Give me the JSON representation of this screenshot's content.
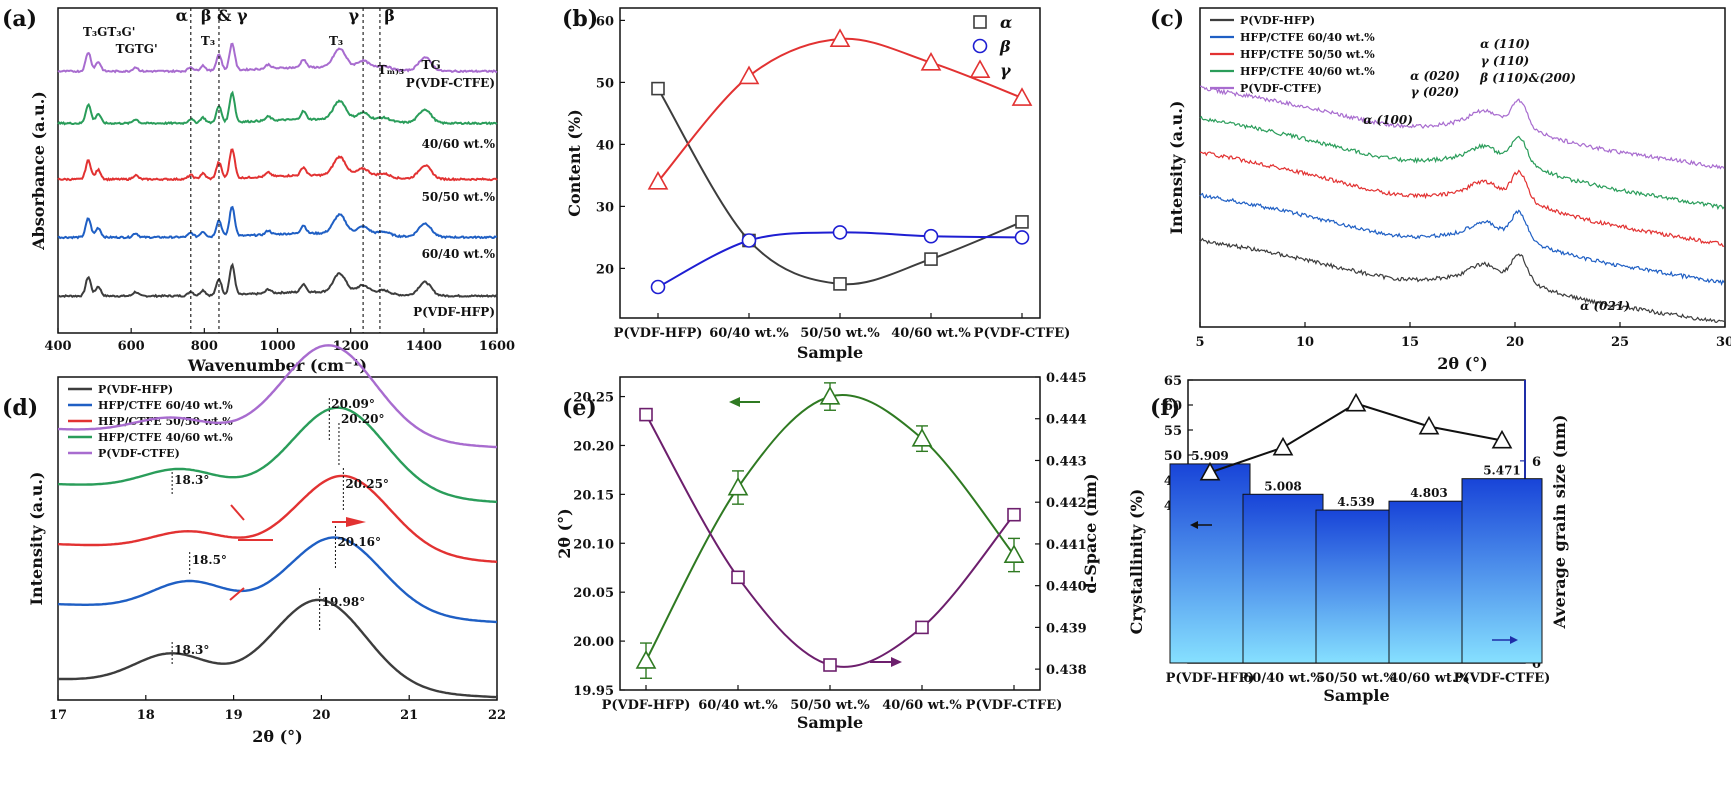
{
  "colors": {
    "black": "#3d3d3d",
    "blue": "#1f5fc4",
    "red": "#e23232",
    "green": "#2a9d5a",
    "purple": "#a86ccf",
    "dkgreen": "#2f7a22",
    "dkpurple": "#6d1f6d",
    "navy": "#1f2ea8"
  },
  "chart_data": [
    {
      "panel": "(a)",
      "type": "line",
      "xlabel": "Wavenumber (cm⁻¹)",
      "ylabel": "Absorbance (a.u.)",
      "xlim": [
        400,
        1600
      ],
      "xticks": [
        "400",
        "600",
        "800",
        "1000",
        "1200",
        "1400",
        "1600"
      ],
      "series": [
        {
          "name": "P(VDF-HFP)",
          "offset": 0
        },
        {
          "name": "60/40 wt.%",
          "offset": 1
        },
        {
          "name": "50/50 wt.%",
          "offset": 2
        },
        {
          "name": "40/60 wt.%",
          "offset": 3
        },
        {
          "name": "P(VDF-CTFE)",
          "offset": 4
        }
      ],
      "peaks": [
        [
          483,
          14
        ],
        [
          510,
          7
        ],
        [
          612,
          3
        ],
        [
          763,
          3
        ],
        [
          796,
          4
        ],
        [
          840,
          12
        ],
        [
          876,
          22
        ],
        [
          975,
          3
        ],
        [
          1071,
          6
        ],
        [
          1170,
          14
        ],
        [
          1234,
          6
        ],
        [
          1290,
          3
        ],
        [
          1403,
          10
        ]
      ],
      "vlines": [
        763,
        840,
        1234,
        1280
      ],
      "annotations": [
        {
          "text": "T₃GT₃G'",
          "x": 540
        },
        {
          "text": "TGTG'",
          "x": 615
        },
        {
          "text": "T₃",
          "x": 810
        },
        {
          "text": "T₃",
          "x": 1160
        },
        {
          "text": "Tₘ₎₃",
          "x": 1310
        },
        {
          "text": "TG",
          "x": 1420
        }
      ],
      "phase_labels": [
        {
          "text": "α",
          "x": 763
        },
        {
          "text": "β & γ",
          "x": 838
        },
        {
          "text": "γ",
          "x": 1225
        },
        {
          "text": "β",
          "x": 1290
        }
      ]
    },
    {
      "panel": "(b)",
      "type": "line",
      "xlabel": "Sample",
      "ylabel": "Content (%)",
      "categories": [
        "P(VDF-HFP)",
        "60/40 wt.%",
        "50/50 wt.%",
        "40/60 wt.%",
        "P(VDF-CTFE)"
      ],
      "ylim": [
        12,
        62
      ],
      "yticks": [
        20,
        30,
        40,
        50,
        60
      ],
      "series": [
        {
          "name": "α",
          "marker": "square",
          "values": [
            49,
            24.5,
            17.5,
            21.5,
            27.5
          ]
        },
        {
          "name": "β",
          "marker": "circle",
          "values": [
            17,
            24.5,
            25.8,
            25.2,
            25
          ]
        },
        {
          "name": "γ",
          "marker": "triangle",
          "values": [
            34,
            51,
            57,
            53.2,
            47.5
          ]
        }
      ]
    },
    {
      "panel": "(c)",
      "type": "line",
      "xlabel": "2θ (°)",
      "ylabel": "Intensity (a.u.)",
      "xlim": [
        5,
        30
      ],
      "xticks": [
        5,
        10,
        15,
        20,
        25,
        30
      ],
      "series": [
        {
          "name": "P(VDF-HFP)"
        },
        {
          "name": "HFP/CTFE 60/40 wt.%"
        },
        {
          "name": "HFP/CTFE 50/50 wt.%"
        },
        {
          "name": "HFP/CTFE 40/60 wt.%"
        },
        {
          "name": "P(VDF-CTFE)"
        }
      ],
      "annotations": [
        "α (110)",
        "γ (110)",
        "β (110)&(200)",
        "α (020)",
        "γ (020)",
        "α (100)",
        "α (021)"
      ]
    },
    {
      "panel": "(d)",
      "type": "line",
      "xlabel": "2θ (°)",
      "ylabel": "Intensity (a.u.)",
      "xlim": [
        17,
        22
      ],
      "xticks": [
        17,
        18,
        19,
        20,
        21,
        22
      ],
      "series": [
        {
          "name": "P(VDF-HFP)",
          "peak": 19.98
        },
        {
          "name": "HFP/CTFE 60/40 wt.%",
          "peak": 20.16
        },
        {
          "name": "HFP/CTFE 50/50 wt.%",
          "peak": 20.25
        },
        {
          "name": "HFP/CTFE 40/60 wt.%",
          "peak": 20.2
        },
        {
          "name": "P(VDF-CTFE)",
          "peak": 20.09
        }
      ],
      "annotations": [
        "20.09°",
        "20.20°",
        "20.25°",
        "20.16°",
        "19.98°",
        "18.3°",
        "18.5°",
        "18.3°"
      ]
    },
    {
      "panel": "(e)",
      "type": "line",
      "xlabel": "Sample",
      "ylabel": "2θ (°)",
      "ylabel_right": "d-Space (nm)",
      "categories": [
        "P(VDF-HFP)",
        "60/40 wt.%",
        "50/50 wt.%",
        "40/60 wt.%",
        "P(VDF-CTFE)"
      ],
      "ylim": [
        19.95,
        20.27
      ],
      "yticks": [
        "19.95",
        "20.00",
        "20.05",
        "20.10",
        "20.15",
        "20.20",
        "20.25"
      ],
      "ylim_right": [
        0.4375,
        0.445
      ],
      "yticks_right": [
        "0.438",
        "0.439",
        "0.440",
        "0.441",
        "0.442",
        "0.443",
        "0.444",
        "0.445"
      ],
      "series": [
        {
          "name": "2θ",
          "axis": "left",
          "values": [
            19.98,
            20.157,
            20.25,
            20.207,
            20.088
          ],
          "errors": [
            0.018,
            0.017,
            0.014,
            0.013,
            0.017
          ]
        },
        {
          "name": "d-Space",
          "axis": "right",
          "values": [
            0.4441,
            0.4402,
            0.4381,
            0.439,
            0.4417
          ]
        }
      ]
    },
    {
      "panel": "(f)",
      "type": "bar",
      "xlabel": "Sample",
      "ylabel": "Crystallinity (%)",
      "ylabel_right": "Average grain size (nm)",
      "categories": [
        "P(VDF-HFP)",
        "60/40 wt.%",
        "50/50 wt.%",
        "40/60 wt.%",
        "P(VDF-CTFE)"
      ],
      "crystallinity": [
        46.5,
        51.5,
        60.3,
        55.7,
        52.9
      ],
      "crystallinity_ylim": [
        38,
        65
      ],
      "crystallinity_yticks": [
        "40",
        "45",
        "50",
        "55",
        "60",
        "65"
      ],
      "grain_size": [
        5.909,
        5.008,
        4.539,
        4.803,
        5.471
      ],
      "grain_size_labels": [
        "5.909",
        "5.008",
        "4.539",
        "4.803",
        "5.471"
      ],
      "grain_ylim": [
        0,
        8.4
      ],
      "grain_yticks": [
        "0",
        "2",
        "4",
        "6"
      ]
    }
  ]
}
